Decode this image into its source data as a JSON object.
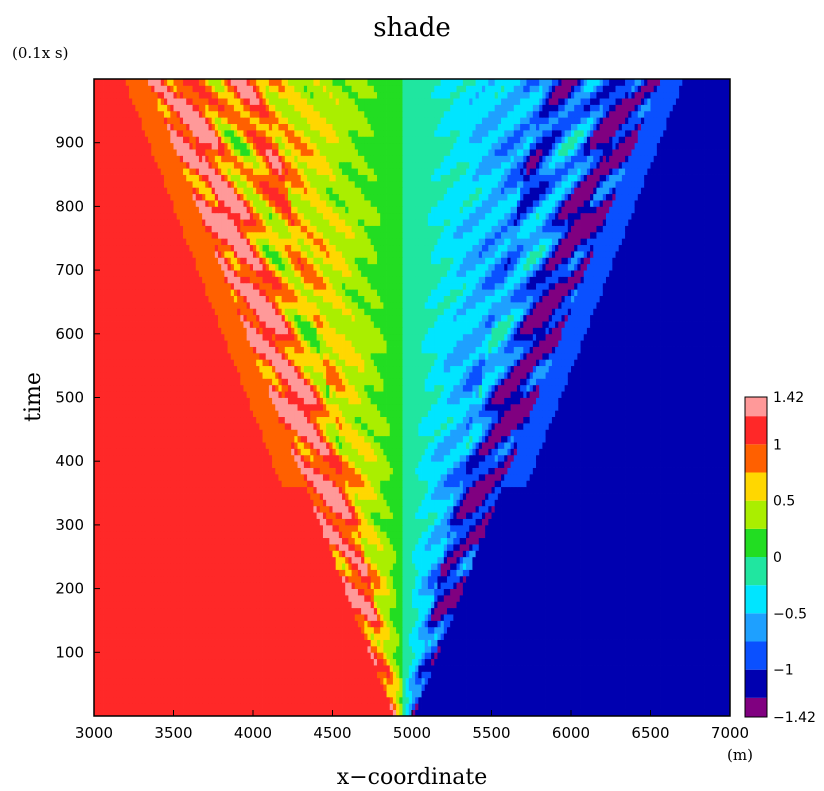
{
  "chart_data": {
    "type": "heatmap",
    "title": "shade",
    "xlabel": "x−coordinate",
    "ylabel": "time",
    "x_unit": "(m)",
    "y_unit": "(0.1x s)",
    "xlim": [
      3000,
      7000
    ],
    "ylim": [
      0,
      1000
    ],
    "x_ticks": [
      3000,
      3500,
      4000,
      4500,
      5000,
      5500,
      6000,
      6500,
      7000
    ],
    "y_ticks": [
      100,
      200,
      300,
      400,
      500,
      600,
      700,
      800,
      900
    ],
    "x_tick_labels": [
      "3000",
      "3500",
      "4000",
      "4500",
      "5000",
      "5500",
      "6000",
      "6500",
      "7000"
    ],
    "y_tick_labels": [
      "100",
      "200",
      "300",
      "400",
      "500",
      "600",
      "700",
      "800",
      "900"
    ],
    "colorbar": {
      "levels": [
        -1.42,
        -1.25,
        -1.0,
        -0.75,
        -0.5,
        -0.25,
        0,
        0.25,
        0.5,
        0.75,
        1.0,
        1.25,
        1.42
      ],
      "labels": [
        {
          "value": 1.42,
          "text": "1.42"
        },
        {
          "value": 1.0,
          "text": "1"
        },
        {
          "value": 0.5,
          "text": "0.5"
        },
        {
          "value": 0,
          "text": "0"
        },
        {
          "value": -0.5,
          "text": "−0.5"
        },
        {
          "value": -1.0,
          "text": "−1"
        },
        {
          "value": -1.42,
          "text": "−1.42"
        }
      ],
      "colors": [
        "#800080",
        "#0000b0",
        "#0a50ff",
        "#1ea0ff",
        "#00e5ff",
        "#20e6a0",
        "#22dd22",
        "#aaee00",
        "#ffd700",
        "#ff6000",
        "#ff2828",
        "#ff9999"
      ]
    },
    "field": "antisymmetric wave field: strongly positive west of x≈4950 m, strongly negative east of it, with a V-shaped interference zone of oscillating bands widening with time",
    "grid": false
  }
}
